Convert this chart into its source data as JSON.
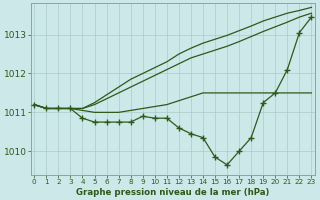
{
  "hours": [
    0,
    1,
    2,
    3,
    4,
    5,
    6,
    7,
    8,
    9,
    10,
    11,
    12,
    13,
    14,
    15,
    16,
    17,
    18,
    19,
    20,
    21,
    22,
    23
  ],
  "line_main": [
    1011.2,
    1011.1,
    1011.1,
    1011.1,
    1010.85,
    1010.75,
    1010.75,
    1010.75,
    1010.75,
    1010.9,
    1010.85,
    1010.85,
    1010.6,
    1010.45,
    1010.35,
    1009.85,
    1009.65,
    1010.0,
    1010.35,
    1011.25,
    1011.5,
    1012.1,
    1013.05,
    1013.45
  ],
  "line_flat": [
    1011.2,
    1011.1,
    1011.1,
    1011.1,
    1011.05,
    1011.0,
    1011.0,
    1011.0,
    1011.05,
    1011.1,
    1011.15,
    1011.2,
    1011.3,
    1011.4,
    1011.5,
    1011.5,
    1011.5,
    1011.5,
    1011.5,
    1011.5,
    1011.5,
    1011.5,
    1011.5,
    1011.5
  ],
  "line_rise1": [
    1011.2,
    1011.1,
    1011.1,
    1011.1,
    1011.1,
    1011.2,
    1011.35,
    1011.5,
    1011.65,
    1011.8,
    1011.95,
    1012.1,
    1012.25,
    1012.4,
    1012.5,
    1012.6,
    1012.7,
    1012.82,
    1012.95,
    1013.08,
    1013.2,
    1013.32,
    1013.45,
    1013.55
  ],
  "line_rise2": [
    1011.2,
    1011.1,
    1011.1,
    1011.1,
    1011.1,
    1011.25,
    1011.45,
    1011.65,
    1011.85,
    1012.0,
    1012.15,
    1012.3,
    1012.5,
    1012.65,
    1012.78,
    1012.88,
    1012.98,
    1013.1,
    1013.22,
    1013.35,
    1013.45,
    1013.55,
    1013.62,
    1013.7
  ],
  "line_color": "#2d5a1b",
  "bg_color": "#cce8e8",
  "grid_color_major": "#aacccc",
  "grid_color_minor": "#bbdddd",
  "title": "Graphe pression niveau de la mer (hPa)",
  "ylim": [
    1009.4,
    1013.8
  ],
  "yticks": [
    1010,
    1011,
    1012,
    1013
  ],
  "xticks": [
    0,
    1,
    2,
    3,
    4,
    5,
    6,
    7,
    8,
    9,
    10,
    11,
    12,
    13,
    14,
    15,
    16,
    17,
    18,
    19,
    20,
    21,
    22,
    23
  ],
  "marker_size": 4,
  "linewidth": 0.9
}
